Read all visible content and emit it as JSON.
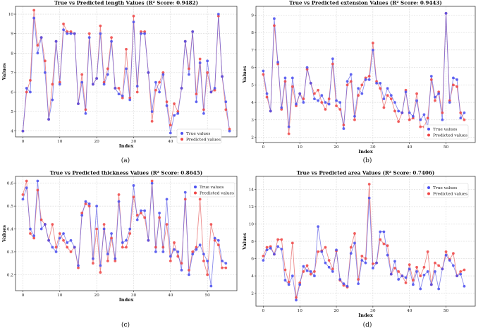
{
  "colors": {
    "true": "#4a4ff0",
    "pred": "#f04646",
    "line_true": "#6464e6",
    "line_pred": "#e66464"
  },
  "chart_data": [
    {
      "type": "line",
      "title": "True vs Predicted length Values (R² Score: 0.9482)",
      "xlabel": "Index",
      "ylabel": "Values",
      "caption": "(a)",
      "xlim": [
        -2,
        58
      ],
      "ylim": [
        3.7,
        10.4
      ],
      "xticks": [
        0,
        10,
        20,
        30,
        40,
        50
      ],
      "yticks": [
        4,
        5,
        6,
        7,
        8,
        9,
        10
      ],
      "legend": {
        "true": "True values",
        "pred": "Predicted values"
      },
      "series": [
        {
          "name": "True values",
          "values": [
            4.0,
            6.2,
            6.0,
            9.8,
            8.0,
            8.8,
            7.0,
            4.6,
            5.6,
            8.6,
            6.4,
            9.2,
            9.0,
            9.0,
            9.0,
            5.4,
            6.5,
            4.9,
            8.8,
            6.4,
            6.7,
            9.0,
            6.4,
            6.9,
            8.6,
            6.2,
            5.9,
            5.8,
            7.2,
            5.6,
            9.6,
            6.3,
            9.0,
            9.0,
            7.0,
            5.0,
            6.5,
            6.0,
            6.9,
            5.3,
            3.9,
            4.8,
            4.9,
            6.2,
            8.6,
            6.9,
            9.1,
            5.5,
            7.5,
            4.9,
            7.6,
            6.0,
            6.2,
            10.0,
            6.8,
            5.5,
            4.0
          ]
        },
        {
          "name": "Predicted values",
          "values": [
            4.0,
            6.0,
            6.6,
            10.2,
            8.4,
            8.8,
            7.6,
            4.6,
            6.4,
            8.6,
            6.5,
            9.5,
            9.1,
            9.1,
            9.0,
            5.4,
            6.9,
            5.1,
            9.0,
            6.4,
            6.7,
            9.4,
            6.5,
            7.2,
            8.8,
            6.2,
            6.2,
            5.7,
            8.2,
            5.7,
            9.9,
            6.0,
            9.1,
            9.1,
            7.0,
            4.5,
            6.1,
            6.5,
            7.0,
            5.5,
            4.3,
            5.4,
            5.0,
            6.2,
            8.6,
            7.2,
            9.1,
            5.9,
            7.7,
            5.1,
            7.0,
            6.0,
            6.1,
            9.9,
            6.8,
            5.1,
            4.1
          ]
        }
      ]
    },
    {
      "type": "line",
      "title": "True vs Predicted extension Values (R² Score: 0.9443)",
      "xlabel": "Index",
      "ylabel": "Values",
      "caption": "(b)",
      "xlim": [
        -2,
        58
      ],
      "ylim": [
        1.7,
        9.5
      ],
      "xticks": [
        0,
        10,
        20,
        30,
        40,
        50
      ],
      "yticks": [
        2,
        3,
        4,
        5,
        6,
        7,
        8,
        9
      ],
      "legend": {
        "true": "True values",
        "pred": "Predicted values"
      },
      "series": [
        {
          "name": "True values",
          "values": [
            5.8,
            4.5,
            3.5,
            8.8,
            6.3,
            3.7,
            5.4,
            2.6,
            5.4,
            3.9,
            4.5,
            4.0,
            6.0,
            5.1,
            4.2,
            4.1,
            4.4,
            4.0,
            3.9,
            6.5,
            4.1,
            4.0,
            2.5,
            5.2,
            5.6,
            3.2,
            4.8,
            4.5,
            5.3,
            5.3,
            7.0,
            5.1,
            5.1,
            4.2,
            4.8,
            4.4,
            4.0,
            3.5,
            3.4,
            4.6,
            3.4,
            3.2,
            4.1,
            3.0,
            3.3,
            2.6,
            5.5,
            4.3,
            4.5,
            3.0,
            9.1,
            4.0,
            5.4,
            5.3,
            3.1,
            3.4
          ]
        },
        {
          "name": "Predicted values",
          "values": [
            5.6,
            4.3,
            3.5,
            8.4,
            6.2,
            3.6,
            5.2,
            2.2,
            4.9,
            3.8,
            4.5,
            4.2,
            5.9,
            5.1,
            4.5,
            4.7,
            4.0,
            3.6,
            4.2,
            6.2,
            3.8,
            3.6,
            2.7,
            5.0,
            5.2,
            3.0,
            4.4,
            5.0,
            5.4,
            5.5,
            7.4,
            5.2,
            4.8,
            3.7,
            4.4,
            4.2,
            3.5,
            2.9,
            3.4,
            4.7,
            3.0,
            3.1,
            4.5,
            2.6,
            2.6,
            3.1,
            5.3,
            4.1,
            4.6,
            3.4,
            9.1,
            4.1,
            5.0,
            4.9,
            3.4,
            3.0
          ]
        }
      ]
    },
    {
      "type": "line",
      "title": "True vs Predicted thickness Values (R² Score: 0.8645)",
      "xlabel": "Index",
      "ylabel": "Values",
      "caption": "(c)",
      "xlim": [
        -2,
        58
      ],
      "ylim": [
        0.13,
        0.63
      ],
      "xticks": [
        0,
        10,
        20,
        30,
        40,
        50
      ],
      "yticks": [
        0.2,
        0.3,
        0.4,
        0.5,
        0.6
      ],
      "legend": {
        "true": "True values",
        "pred": "Predicted values"
      },
      "series": [
        {
          "name": "True values",
          "values": [
            0.53,
            0.58,
            0.4,
            0.37,
            0.61,
            0.4,
            0.42,
            0.35,
            0.32,
            0.3,
            0.36,
            0.38,
            0.34,
            0.35,
            0.32,
            0.24,
            0.46,
            0.52,
            0.51,
            0.27,
            0.5,
            0.24,
            0.4,
            0.29,
            0.38,
            0.27,
            0.52,
            0.34,
            0.35,
            0.4,
            0.59,
            0.44,
            0.48,
            0.48,
            0.35,
            0.6,
            0.3,
            0.47,
            0.3,
            0.53,
            0.28,
            0.31,
            0.3,
            0.22,
            0.56,
            0.2,
            0.29,
            0.31,
            0.33,
            0.29,
            0.26,
            0.15,
            0.36,
            0.35,
            0.26,
            0.25
          ]
        },
        {
          "name": "Predicted values",
          "values": [
            0.55,
            0.61,
            0.38,
            0.36,
            0.57,
            0.44,
            0.42,
            0.35,
            0.42,
            0.32,
            0.38,
            0.35,
            0.32,
            0.3,
            0.32,
            0.23,
            0.47,
            0.51,
            0.5,
            0.25,
            0.4,
            0.21,
            0.42,
            0.26,
            0.36,
            0.26,
            0.55,
            0.32,
            0.32,
            0.38,
            0.54,
            0.46,
            0.47,
            0.45,
            0.35,
            0.61,
            0.32,
            0.45,
            0.32,
            0.42,
            0.26,
            0.34,
            0.28,
            0.25,
            0.53,
            0.22,
            0.3,
            0.32,
            0.53,
            0.26,
            0.2,
            0.42,
            0.35,
            0.33,
            0.23,
            0.23
          ]
        }
      ]
    },
    {
      "type": "line",
      "title": "True vs Predicted area Values (R² Score: 0.7406)",
      "xlabel": "Index",
      "ylabel": "Values",
      "caption": "(d)",
      "xlim": [
        -2,
        58
      ],
      "ylim": [
        0.5,
        15.5
      ],
      "xticks": [
        0,
        10,
        20,
        30,
        40,
        50
      ],
      "yticks": [
        2,
        4,
        6,
        8,
        10,
        12,
        14
      ],
      "legend": {
        "true": "True values",
        "pred": "Predicted values"
      },
      "series": [
        {
          "name": "True values",
          "values": [
            5.8,
            7.0,
            7.2,
            6.5,
            7.4,
            7.1,
            3.5,
            3.0,
            4.0,
            1.2,
            3.0,
            5.1,
            4.6,
            4.5,
            4.0,
            9.7,
            6.8,
            5.5,
            5.0,
            4.5,
            7.0,
            3.6,
            3.1,
            2.8,
            6.6,
            7.8,
            3.1,
            5.8,
            5.5,
            13.0,
            4.9,
            5.5,
            9.1,
            9.1,
            6.4,
            4.2,
            5.7,
            3.6,
            4.0,
            3.8,
            4.8,
            3.0,
            4.5,
            2.5,
            4.1,
            4.5,
            3.0,
            4.5,
            2.5,
            4.8,
            6.4,
            5.8,
            5.2,
            4.0,
            4.2,
            2.8
          ]
        },
        {
          "name": "Predicted values",
          "values": [
            6.3,
            7.3,
            7.4,
            6.5,
            8.2,
            8.2,
            4.7,
            3.3,
            7.8,
            1.5,
            3.2,
            4.5,
            5.2,
            4.2,
            4.5,
            6.8,
            6.9,
            7.3,
            5.8,
            4.8,
            6.9,
            3.5,
            2.9,
            2.7,
            7.3,
            8.9,
            3.6,
            6.3,
            6.0,
            14.6,
            5.4,
            5.5,
            8.2,
            7.7,
            7.5,
            4.2,
            4.9,
            4.5,
            4.0,
            3.2,
            5.3,
            3.5,
            5.0,
            4.0,
            5.0,
            6.8,
            3.0,
            5.5,
            5.2,
            4.8,
            6.8,
            5.9,
            6.6,
            4.0,
            4.5,
            4.7
          ]
        }
      ]
    }
  ]
}
